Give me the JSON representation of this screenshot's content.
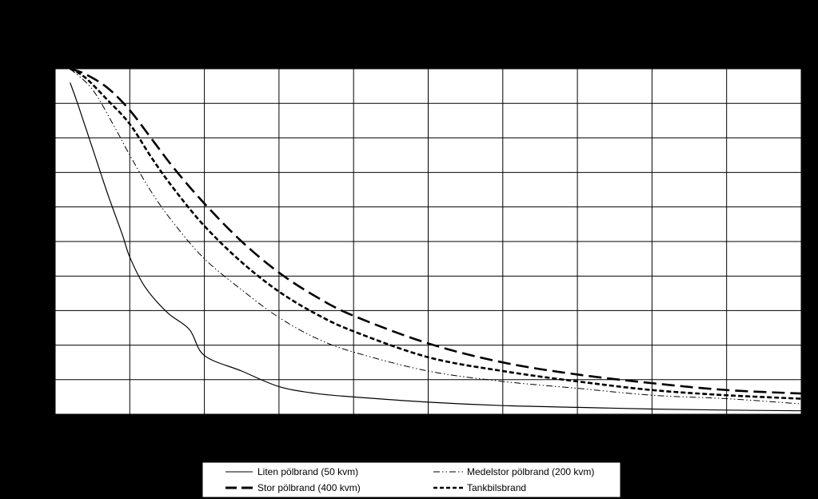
{
  "colors": {
    "background": "#000000",
    "plot_area": "#ffffff",
    "grid": "#000000",
    "series": "#000000",
    "legend_box": "#ffffff"
  },
  "chart_data": {
    "type": "line",
    "title": "",
    "xlabel": "",
    "ylabel": "",
    "xlim": [
      0,
      100
    ],
    "ylim": [
      0,
      100
    ],
    "x_gridlines": [
      10,
      20,
      30,
      40,
      50,
      60,
      70,
      80,
      90,
      100
    ],
    "y_gridlines": [
      10,
      20,
      30,
      40,
      50,
      60,
      70,
      80,
      90,
      100
    ],
    "grid": true,
    "legend_position": "bottom",
    "series": [
      {
        "name": "Liten pölbrand (50 kvm)",
        "line_style": "solid",
        "x": [
          2,
          3,
          5,
          7,
          9,
          10,
          12,
          15,
          18,
          20,
          25,
          30,
          35,
          40,
          50,
          60,
          70,
          80,
          90,
          100
        ],
        "y": [
          96,
          90,
          77,
          64,
          52,
          45.5,
          37,
          29.5,
          24.5,
          17,
          12.5,
          8,
          6,
          5,
          3.5,
          2.5,
          2,
          1.5,
          1.2,
          1
        ]
      },
      {
        "name": "Medelstor pölbrand (200 kvm)",
        "line_style": "dash-dot-dot",
        "x": [
          2,
          5,
          8,
          10,
          13,
          16,
          20,
          25,
          30,
          35,
          40,
          50,
          60,
          70,
          80,
          90,
          100
        ],
        "y": [
          100,
          94,
          83,
          75,
          64,
          55,
          45,
          36,
          28,
          22,
          18,
          12.5,
          9.5,
          7.5,
          5.5,
          4.5,
          3
        ]
      },
      {
        "name": "Stor pölbrand (400 kvm)",
        "line_style": "long-dash",
        "x": [
          2,
          4,
          7,
          10,
          13,
          16,
          20,
          25,
          30,
          35,
          40,
          50,
          60,
          70,
          80,
          90,
          100
        ],
        "y": [
          100,
          98.5,
          94.5,
          88,
          79.5,
          71,
          61,
          50,
          41,
          34,
          28.5,
          20.5,
          15,
          11.5,
          9,
          7,
          6
        ]
      },
      {
        "name": "Tankbilsbrand",
        "line_style": "short-dash",
        "x": [
          2,
          4,
          7,
          10,
          13,
          16,
          20,
          25,
          30,
          35,
          40,
          50,
          60,
          70,
          80,
          90,
          100
        ],
        "y": [
          100,
          97.5,
          91,
          84,
          74,
          65,
          54.5,
          44,
          35.5,
          29,
          24,
          16.5,
          12.5,
          9.5,
          7,
          5.5,
          4.5
        ]
      }
    ]
  }
}
